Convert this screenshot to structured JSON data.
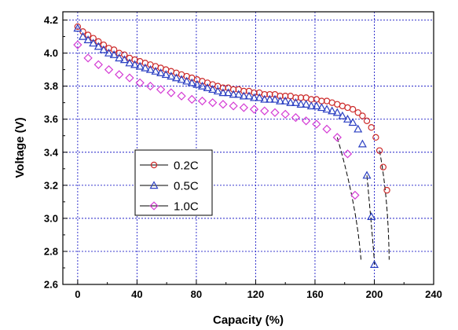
{
  "chart_data": {
    "type": "scatter",
    "xlabel": "Capacity (%)",
    "ylabel": "Voltage (V)",
    "xlim": [
      -10,
      240
    ],
    "ylim": [
      2.6,
      4.25
    ],
    "xticks": [
      "0",
      "40",
      "80",
      "120",
      "160",
      "200",
      "240"
    ],
    "yticks": [
      "2.6",
      "2.8",
      "3.0",
      "3.2",
      "3.4",
      "3.6",
      "3.8",
      "4.0",
      "4.2"
    ],
    "grid": true,
    "legend": "center-left",
    "series": [
      {
        "name": "0.2C",
        "marker": "circle",
        "color": "#cc2a2a",
        "x": [
          0,
          3.5,
          7,
          10.5,
          14,
          17.5,
          21,
          24.5,
          28,
          31.5,
          35,
          38.5,
          42,
          45.5,
          49,
          52.5,
          56,
          59.5,
          63,
          66.5,
          70,
          73.5,
          77,
          80.5,
          84,
          87.5,
          91,
          94.5,
          98,
          101.5,
          105,
          108.5,
          112,
          115.5,
          119,
          122.5,
          126,
          129.5,
          133,
          136.5,
          140,
          143.5,
          147,
          150.5,
          154,
          157.5,
          161,
          164.5,
          168,
          171.5,
          175,
          178.5,
          182,
          185.5,
          189,
          192,
          195,
          198,
          201,
          203.5,
          206,
          208.5
        ],
        "y": [
          4.16,
          4.13,
          4.11,
          4.09,
          4.07,
          4.05,
          4.03,
          4.02,
          4.0,
          3.99,
          3.97,
          3.96,
          3.95,
          3.94,
          3.93,
          3.92,
          3.91,
          3.9,
          3.89,
          3.88,
          3.87,
          3.86,
          3.85,
          3.84,
          3.83,
          3.82,
          3.81,
          3.8,
          3.79,
          3.79,
          3.78,
          3.78,
          3.77,
          3.77,
          3.76,
          3.76,
          3.75,
          3.75,
          3.75,
          3.74,
          3.74,
          3.74,
          3.73,
          3.73,
          3.73,
          3.72,
          3.72,
          3.71,
          3.71,
          3.7,
          3.69,
          3.68,
          3.67,
          3.66,
          3.64,
          3.62,
          3.59,
          3.55,
          3.49,
          3.41,
          3.31,
          3.17
        ]
      },
      {
        "name": "0.5C",
        "marker": "triangle",
        "color": "#2a3fc2",
        "x": [
          0,
          3.5,
          7,
          10.5,
          14,
          17.5,
          21,
          24.5,
          28,
          31.5,
          35,
          38.5,
          42,
          45.5,
          49,
          52.5,
          56,
          59.5,
          63,
          66.5,
          70,
          73.5,
          77,
          80.5,
          84,
          87.5,
          91,
          94.5,
          98,
          101.5,
          105,
          108.5,
          112,
          115.5,
          119,
          122.5,
          126,
          129.5,
          133,
          136.5,
          140,
          143.5,
          147,
          150.5,
          154,
          157.5,
          161,
          164.5,
          168,
          171.5,
          175,
          178.5,
          182,
          185.5,
          189,
          192,
          195,
          198,
          200
        ],
        "y": [
          4.15,
          4.1,
          4.08,
          4.06,
          4.04,
          4.02,
          4.0,
          3.99,
          3.97,
          3.96,
          3.94,
          3.93,
          3.92,
          3.91,
          3.9,
          3.89,
          3.88,
          3.87,
          3.86,
          3.85,
          3.84,
          3.83,
          3.82,
          3.81,
          3.8,
          3.79,
          3.78,
          3.77,
          3.76,
          3.76,
          3.75,
          3.75,
          3.74,
          3.74,
          3.73,
          3.73,
          3.72,
          3.72,
          3.72,
          3.71,
          3.71,
          3.7,
          3.7,
          3.69,
          3.69,
          3.68,
          3.68,
          3.67,
          3.66,
          3.65,
          3.64,
          3.62,
          3.6,
          3.58,
          3.54,
          3.45,
          3.26,
          3.01,
          2.72
        ]
      },
      {
        "name": "1.0C",
        "marker": "diamond",
        "color": "#d43bd4",
        "x": [
          0,
          7,
          14,
          21,
          28,
          35,
          42,
          49,
          56,
          63,
          70,
          77,
          84,
          91,
          98,
          105,
          112,
          119,
          126,
          133,
          140,
          147,
          154,
          161,
          168,
          175,
          182,
          187
        ],
        "y": [
          4.05,
          3.97,
          3.93,
          3.9,
          3.87,
          3.85,
          3.82,
          3.8,
          3.78,
          3.76,
          3.74,
          3.72,
          3.71,
          3.7,
          3.69,
          3.68,
          3.67,
          3.66,
          3.65,
          3.64,
          3.63,
          3.61,
          3.59,
          3.57,
          3.54,
          3.49,
          3.39,
          3.14
        ]
      }
    ]
  }
}
